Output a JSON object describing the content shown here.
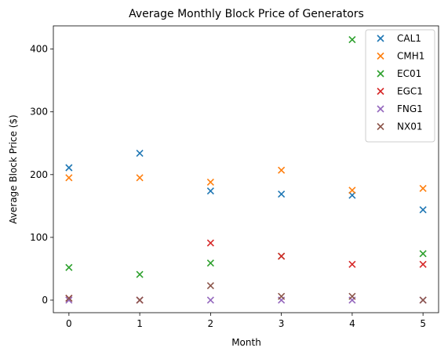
{
  "chart_data": {
    "type": "scatter",
    "title": "Average Monthly Block Price of Generators",
    "xlabel": "Month",
    "ylabel": "Average Block Price ($)",
    "x": [
      0,
      1,
      2,
      3,
      4,
      5
    ],
    "xticks": [
      0,
      1,
      2,
      3,
      4,
      5
    ],
    "yticks": [
      0,
      100,
      200,
      300,
      400
    ],
    "xlim": [
      -0.22,
      5.22
    ],
    "ylim": [
      -20,
      437
    ],
    "grid": false,
    "legend_position": "top-right",
    "marker": "x",
    "series": [
      {
        "name": "CAL1",
        "color": "#1f77b4",
        "values": [
          211,
          234,
          174,
          169,
          167,
          144
        ]
      },
      {
        "name": "CMH1",
        "color": "#ff7f0e",
        "values": [
          195,
          195,
          188,
          207,
          175,
          178
        ]
      },
      {
        "name": "EC01",
        "color": "#2ca02c",
        "values": [
          52,
          41,
          59,
          70,
          415,
          74
        ]
      },
      {
        "name": "EGC1",
        "color": "#d62728",
        "values": [
          3,
          0,
          91,
          70,
          57,
          57
        ]
      },
      {
        "name": "FNG1",
        "color": "#9467bd",
        "values": [
          0,
          0,
          0,
          0,
          0,
          0
        ]
      },
      {
        "name": "NX01",
        "color": "#8c564b",
        "values": [
          3,
          0,
          23,
          6,
          6,
          0
        ]
      }
    ]
  }
}
